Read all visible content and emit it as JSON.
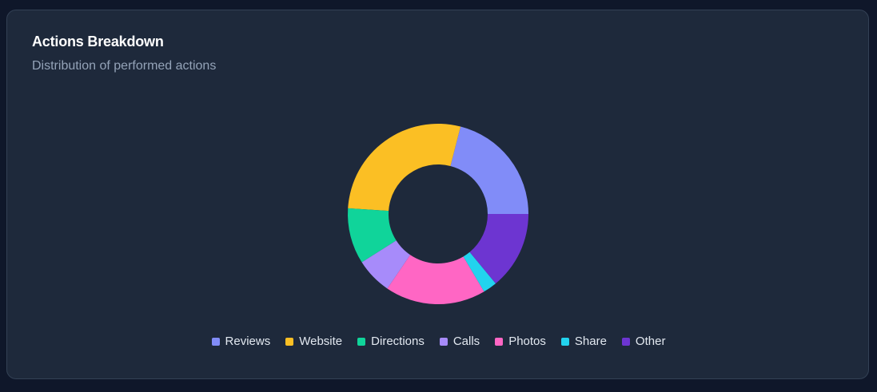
{
  "card": {
    "title": "Actions Breakdown",
    "subtitle": "Distribution of performed actions"
  },
  "chart_data": {
    "type": "pie",
    "donut": true,
    "categories": [
      "Reviews",
      "Website",
      "Directions",
      "Calls",
      "Photos",
      "Share",
      "Other"
    ],
    "values": [
      21,
      28,
      10,
      6.5,
      18,
      2.5,
      14
    ],
    "colors": [
      "#818cf8",
      "#fbbf24",
      "#10d49a",
      "#a78bfa",
      "#ff66c4",
      "#22d3ee",
      "#6d35d1"
    ],
    "legend_position": "bottom",
    "xlabel": "",
    "ylabel": ""
  }
}
